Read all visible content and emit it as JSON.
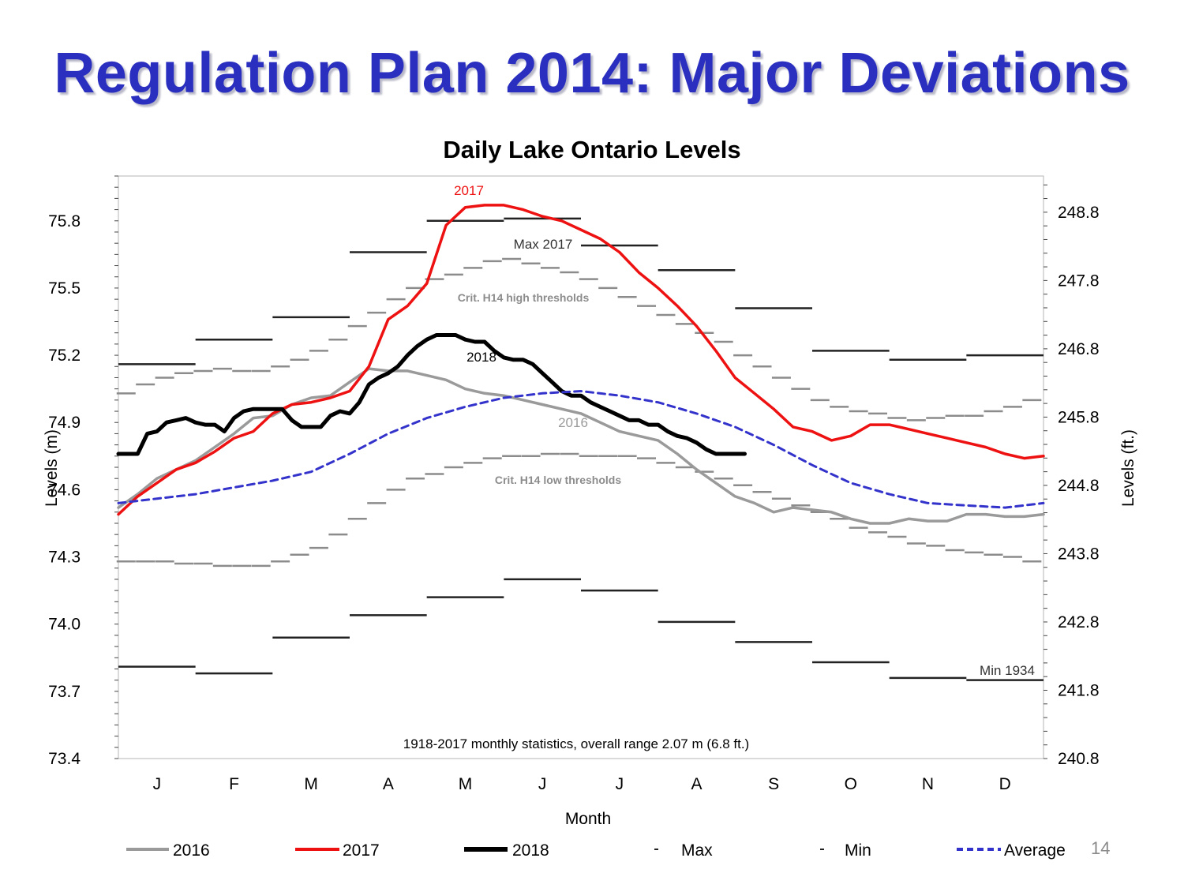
{
  "slide": {
    "title": "Regulation Plan 2014: Major Deviations",
    "page_number": "14"
  },
  "colors": {
    "title": "#2a2fbf",
    "s2016": "#9a9a9a",
    "s2017": "#ee1111",
    "s2018": "#000000",
    "max_min": "#222222",
    "thresholds": "#8c8c8c",
    "average": "#3333cc"
  },
  "chart_data": {
    "type": "line",
    "title": "Daily Lake Ontario Levels",
    "xlabel": "Month",
    "ylabel": "Levels (m)",
    "y2label": "Levels (ft.)",
    "ylim": [
      73.4,
      76.0
    ],
    "yticks": [
      "73.4",
      "73.7",
      "74.0",
      "74.3",
      "74.6",
      "74.9",
      "75.2",
      "75.5",
      "75.8"
    ],
    "y2lim": [
      240.8,
      249.33
    ],
    "y2ticks": [
      "240.8",
      "241.8",
      "242.8",
      "243.8",
      "244.8",
      "245.8",
      "246.8",
      "247.8",
      "248.8"
    ],
    "months": [
      "J",
      "F",
      "M",
      "A",
      "M",
      "J",
      "J",
      "A",
      "S",
      "O",
      "N",
      "D"
    ],
    "note": "1918-2017 monthly statistics, overall range 2.07 m (6.8 ft.)",
    "legend": [
      "2016",
      "2017",
      "2018",
      "Max",
      "Min",
      "Average"
    ],
    "annotations": {
      "label_2017": "2017",
      "max_2017": "Max 2017",
      "high": "Crit. H14 high thresholds",
      "label_2018": "2018",
      "label_2016": "2016",
      "low": "Crit. H14 low thresholds",
      "min_1934": "Min 1934"
    },
    "monthly_max": [
      75.16,
      75.27,
      75.37,
      75.66,
      75.8,
      75.81,
      75.69,
      75.58,
      75.41,
      75.22,
      75.18,
      75.2
    ],
    "monthly_min": [
      73.81,
      73.78,
      73.94,
      74.04,
      74.12,
      74.2,
      74.15,
      74.01,
      73.92,
      73.83,
      73.76,
      73.75
    ],
    "high_thresholds": {
      "x": [
        0.1,
        0.35,
        0.6,
        0.85,
        1.1,
        1.35,
        1.6,
        1.85,
        2.1,
        2.35,
        2.6,
        2.85,
        3.1,
        3.35,
        3.6,
        3.85,
        4.1,
        4.35,
        4.6,
        4.85,
        5.1,
        5.35,
        5.6,
        5.85,
        6.1,
        6.35,
        6.6,
        6.85,
        7.1,
        7.35,
        7.6,
        7.85,
        8.1,
        8.35,
        8.6,
        8.85,
        9.1,
        9.35,
        9.6,
        9.85,
        10.1,
        10.35,
        10.6,
        10.85,
        11.1,
        11.35,
        11.6,
        11.85
      ],
      "y": [
        75.03,
        75.07,
        75.1,
        75.12,
        75.13,
        75.14,
        75.13,
        75.13,
        75.15,
        75.18,
        75.22,
        75.27,
        75.33,
        75.39,
        75.45,
        75.5,
        75.54,
        75.56,
        75.59,
        75.62,
        75.63,
        75.61,
        75.59,
        75.57,
        75.54,
        75.5,
        75.46,
        75.42,
        75.38,
        75.34,
        75.3,
        75.26,
        75.2,
        75.15,
        75.1,
        75.05,
        75.0,
        74.97,
        74.95,
        74.94,
        74.92,
        74.91,
        74.92,
        74.93,
        74.93,
        74.95,
        74.97,
        75.0
      ]
    },
    "low_thresholds": {
      "x": [
        0.1,
        0.35,
        0.6,
        0.85,
        1.1,
        1.35,
        1.6,
        1.85,
        2.1,
        2.35,
        2.6,
        2.85,
        3.1,
        3.35,
        3.6,
        3.85,
        4.1,
        4.35,
        4.6,
        4.85,
        5.1,
        5.35,
        5.6,
        5.85,
        6.1,
        6.35,
        6.6,
        6.85,
        7.1,
        7.35,
        7.6,
        7.85,
        8.1,
        8.35,
        8.6,
        8.85,
        9.1,
        9.35,
        9.6,
        9.85,
        10.1,
        10.35,
        10.6,
        10.85,
        11.1,
        11.35,
        11.6,
        11.85
      ],
      "y": [
        74.28,
        74.28,
        74.28,
        74.27,
        74.27,
        74.26,
        74.26,
        74.26,
        74.28,
        74.31,
        74.34,
        74.4,
        74.47,
        74.54,
        74.6,
        74.65,
        74.67,
        74.7,
        74.72,
        74.74,
        74.75,
        74.75,
        74.76,
        74.76,
        74.75,
        74.75,
        74.75,
        74.74,
        74.72,
        74.7,
        74.68,
        74.65,
        74.62,
        74.59,
        74.56,
        74.53,
        74.5,
        74.47,
        74.43,
        74.41,
        74.39,
        74.36,
        74.35,
        74.33,
        74.32,
        74.31,
        74.3,
        74.28
      ]
    },
    "series": [
      {
        "name": "2016",
        "x": [
          0,
          0.25,
          0.5,
          0.75,
          1.0,
          1.25,
          1.5,
          1.75,
          2.0,
          2.25,
          2.5,
          2.75,
          3.0,
          3.25,
          3.5,
          3.75,
          4.0,
          4.25,
          4.5,
          4.75,
          5.0,
          5.25,
          5.5,
          5.75,
          6.0,
          6.25,
          6.5,
          6.75,
          7.0,
          7.25,
          7.5,
          7.75,
          8.0,
          8.25,
          8.5,
          8.75,
          9.0,
          9.25,
          9.5,
          9.75,
          10.0,
          10.25,
          10.5,
          10.75,
          11.0,
          11.25,
          11.5,
          11.75,
          12.0
        ],
        "y": [
          74.52,
          74.58,
          74.65,
          74.69,
          74.73,
          74.79,
          74.85,
          74.92,
          74.93,
          74.98,
          75.01,
          75.02,
          75.08,
          75.14,
          75.13,
          75.13,
          75.11,
          75.09,
          75.05,
          75.03,
          75.02,
          75.0,
          74.98,
          74.96,
          74.94,
          74.9,
          74.86,
          74.84,
          74.82,
          74.76,
          74.69,
          74.63,
          74.57,
          74.54,
          74.5,
          74.52,
          74.51,
          74.5,
          74.47,
          74.45,
          74.45,
          74.47,
          74.46,
          74.46,
          74.49,
          74.49,
          74.48,
          74.48,
          74.49
        ]
      },
      {
        "name": "2017",
        "x": [
          0,
          0.25,
          0.5,
          0.75,
          1.0,
          1.25,
          1.5,
          1.75,
          2.0,
          2.25,
          2.5,
          2.75,
          3.0,
          3.25,
          3.5,
          3.75,
          4.0,
          4.25,
          4.5,
          4.75,
          5.0,
          5.25,
          5.5,
          5.75,
          6.0,
          6.25,
          6.5,
          6.75,
          7.0,
          7.25,
          7.5,
          7.75,
          8.0,
          8.25,
          8.5,
          8.75,
          9.0,
          9.25,
          9.5,
          9.75,
          10.0,
          10.25,
          10.5,
          10.75,
          11.0,
          11.25,
          11.5,
          11.75,
          12.0
        ],
        "y": [
          74.49,
          74.57,
          74.63,
          74.69,
          74.72,
          74.77,
          74.83,
          74.86,
          74.94,
          74.98,
          74.99,
          75.01,
          75.04,
          75.15,
          75.36,
          75.42,
          75.52,
          75.78,
          75.86,
          75.87,
          75.87,
          75.85,
          75.82,
          75.8,
          75.76,
          75.72,
          75.66,
          75.57,
          75.5,
          75.42,
          75.33,
          75.22,
          75.1,
          75.03,
          74.96,
          74.88,
          74.86,
          74.82,
          74.84,
          74.89,
          74.89,
          74.87,
          74.85,
          74.83,
          74.81,
          74.79,
          74.76,
          74.74,
          74.75
        ]
      },
      {
        "name": "2018",
        "x": [
          0,
          0.125,
          0.25,
          0.375,
          0.5,
          0.625,
          0.75,
          0.875,
          1.0,
          1.125,
          1.25,
          1.375,
          1.5,
          1.625,
          1.75,
          1.875,
          2.0,
          2.125,
          2.25,
          2.375,
          2.5,
          2.625,
          2.75,
          2.875,
          3.0,
          3.125,
          3.25,
          3.375,
          3.5,
          3.625,
          3.75,
          3.875,
          4.0,
          4.125,
          4.25,
          4.375,
          4.5,
          4.625,
          4.75,
          4.875,
          5.0,
          5.125,
          5.25,
          5.375,
          5.5,
          5.625,
          5.75,
          5.875,
          6.0,
          6.125,
          6.25,
          6.375,
          6.5,
          6.625,
          6.75,
          6.875,
          7.0,
          7.125,
          7.25,
          7.375,
          7.5,
          7.625,
          7.75,
          7.875,
          8.0,
          8.125
        ],
        "y": [
          74.76,
          74.76,
          74.76,
          74.85,
          74.86,
          74.9,
          74.91,
          74.92,
          74.9,
          74.89,
          74.89,
          74.86,
          74.92,
          74.95,
          74.96,
          74.96,
          74.96,
          74.96,
          74.91,
          74.88,
          74.88,
          74.88,
          74.93,
          74.95,
          74.94,
          74.99,
          75.07,
          75.1,
          75.12,
          75.15,
          75.2,
          75.24,
          75.27,
          75.29,
          75.29,
          75.29,
          75.27,
          75.26,
          75.26,
          75.22,
          75.19,
          75.18,
          75.18,
          75.16,
          75.12,
          75.08,
          75.04,
          75.02,
          75.02,
          74.99,
          74.97,
          74.95,
          74.93,
          74.91,
          74.91,
          74.89,
          74.89,
          74.86,
          74.84,
          74.83,
          74.81,
          74.78,
          74.76,
          74.76,
          74.76,
          74.76
        ]
      },
      {
        "name": "Average",
        "x": [
          0,
          0.5,
          1.0,
          1.5,
          2.0,
          2.5,
          3.0,
          3.5,
          4.0,
          4.5,
          5.0,
          5.5,
          6.0,
          6.5,
          7.0,
          7.5,
          8.0,
          8.5,
          9.0,
          9.5,
          10.0,
          10.5,
          11.0,
          11.5,
          12.0
        ],
        "y": [
          74.54,
          74.56,
          74.58,
          74.61,
          74.64,
          74.68,
          74.76,
          74.85,
          74.92,
          74.97,
          75.01,
          75.03,
          75.04,
          75.02,
          74.99,
          74.94,
          74.88,
          74.8,
          74.71,
          74.63,
          74.58,
          74.54,
          74.53,
          74.52,
          74.54
        ]
      }
    ]
  }
}
